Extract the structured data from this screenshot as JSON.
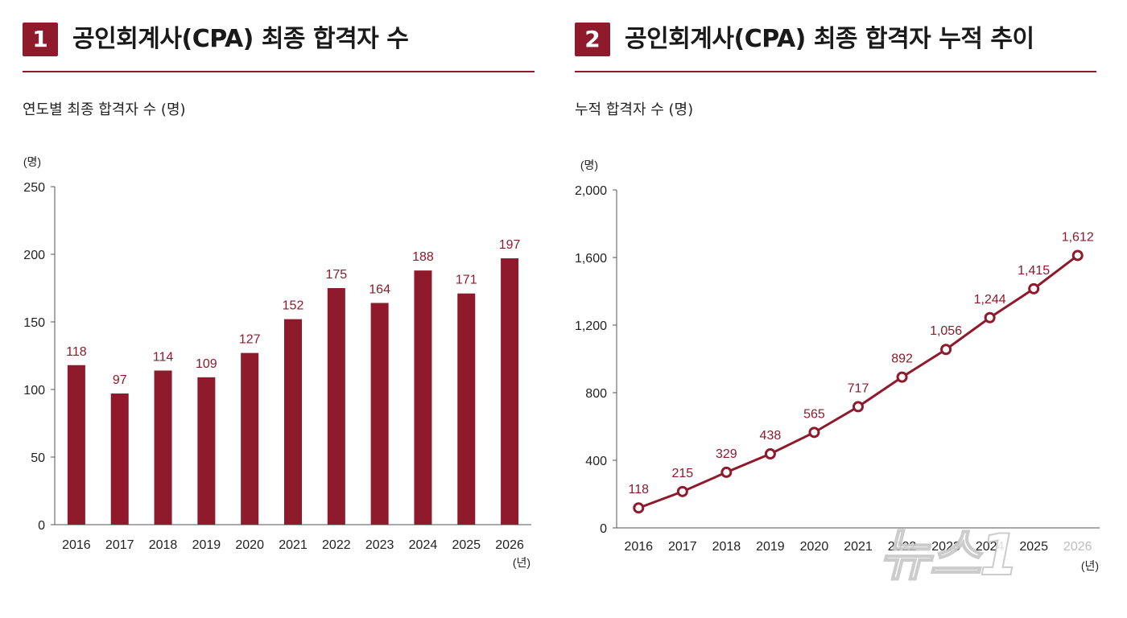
{
  "panel1": {
    "badge": "1",
    "title": "공인회계사(CPA) 최종 합격자 수",
    "subtitle": "연도별 최종 합격자 수 (명)",
    "y_unit": "(명)",
    "x_unit": "(년)"
  },
  "panel2": {
    "badge": "2",
    "title": "공인회계사(CPA) 최종 합격자 누적 추이",
    "subtitle": "누적 합격자 수 (명)",
    "y_unit": "(명)",
    "x_unit": "(년)"
  },
  "watermark": "뉴스1",
  "colors": {
    "accent": "#8e1a2b",
    "bar": "#8e1a2b",
    "line": "#8e1a2b",
    "label": "#8e1a2b"
  },
  "chart_data": [
    {
      "type": "bar",
      "title": "연도별 최종 합격자 수 (명)",
      "categories": [
        "2016",
        "2017",
        "2018",
        "2019",
        "2020",
        "2021",
        "2022",
        "2023",
        "2024",
        "2025",
        "2026"
      ],
      "values": [
        118,
        97,
        114,
        109,
        127,
        152,
        175,
        164,
        188,
        171,
        197
      ],
      "ylim": [
        0,
        250
      ],
      "yticks": [
        0,
        50,
        100,
        150,
        200,
        250
      ],
      "ytick_labels": [
        "0",
        "50",
        "100",
        "150",
        "200",
        "250"
      ],
      "data_labels": [
        "118",
        "97",
        "114",
        "109",
        "127",
        "152",
        "175",
        "164",
        "188",
        "171",
        "197"
      ],
      "grid": false,
      "legend": "none"
    },
    {
      "type": "line",
      "title": "누적 합격자 수 (명)",
      "categories": [
        "2016",
        "2017",
        "2018",
        "2019",
        "2020",
        "2021",
        "2022",
        "2023",
        "2024",
        "2025",
        "2026"
      ],
      "values": [
        118,
        215,
        329,
        438,
        565,
        717,
        892,
        1056,
        1244,
        1415,
        1612
      ],
      "ylim": [
        0,
        2000
      ],
      "yticks": [
        0,
        400,
        800,
        1200,
        1600,
        2000
      ],
      "ytick_labels": [
        "0",
        "400",
        "800",
        "1,200",
        "1,600",
        "2,000"
      ],
      "data_labels": [
        "118",
        "215",
        "329",
        "438",
        "565",
        "717",
        "892",
        "1,056",
        "1,244",
        "1,415",
        "1,612"
      ],
      "grid": false,
      "legend": "none"
    }
  ]
}
